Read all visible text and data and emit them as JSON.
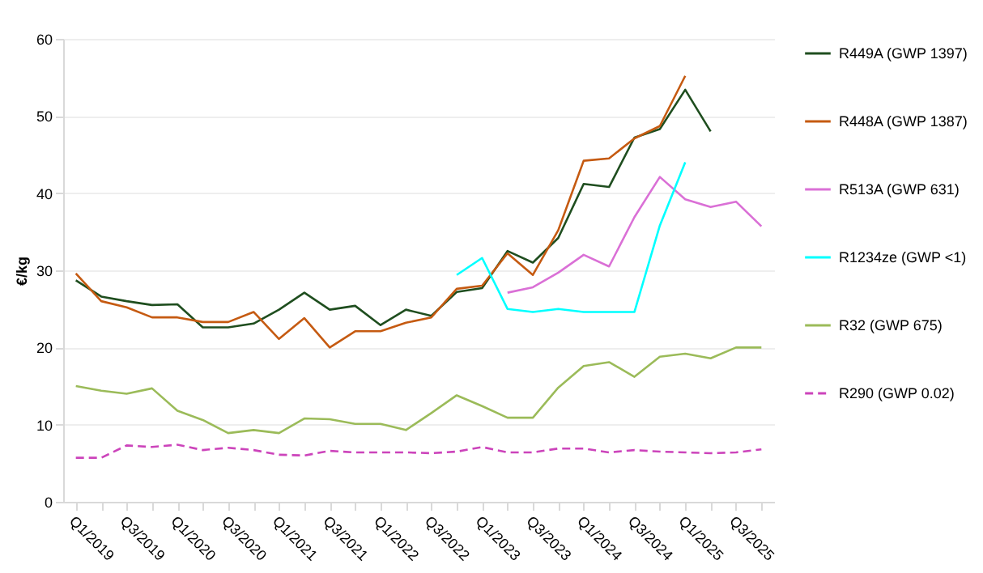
{
  "chart_data": {
    "type": "line",
    "ylabel": "€/kg",
    "categories": [
      "Q1/2019",
      null,
      "Q3/2019",
      null,
      "Q1/2020",
      null,
      "Q3/2020",
      null,
      "Q1/2021",
      null,
      "Q3/2021",
      null,
      "Q1/2022",
      null,
      "Q3/2022",
      null,
      "Q1/2023",
      null,
      "Q3/2023",
      null,
      "Q1/2024",
      null,
      "Q3/2024",
      null,
      "Q1/2025",
      null,
      "Q3/2025",
      null
    ],
    "series": [
      {
        "name": "R449A (GWP 1397)",
        "color": "#1f4e1f",
        "values": [
          28.7,
          26.6,
          26.0,
          25.5,
          25.6,
          22.6,
          22.6,
          23.1,
          24.9,
          27.1,
          24.9,
          25.4,
          22.9,
          24.9,
          24.1,
          27.2,
          27.7,
          32.5,
          31.0,
          34.2,
          41.2,
          40.8,
          47.2,
          48.3,
          53.4,
          48.0,
          null,
          null
        ]
      },
      {
        "name": "R448A (GWP 1387)",
        "color": "#c55a11",
        "values": [
          29.6,
          26.0,
          25.2,
          23.9,
          23.9,
          23.3,
          23.3,
          24.6,
          21.1,
          23.8,
          20.0,
          22.1,
          22.1,
          23.2,
          23.9,
          27.6,
          28.0,
          32.2,
          29.4,
          35.2,
          44.2,
          44.5,
          47.1,
          48.7,
          55.2,
          null,
          null,
          null
        ]
      },
      {
        "name": "R513A (GWP 631)",
        "color": "#da70d6",
        "values": [
          null,
          null,
          null,
          null,
          null,
          null,
          null,
          null,
          null,
          null,
          null,
          null,
          null,
          null,
          null,
          null,
          null,
          27.1,
          27.8,
          29.7,
          32.0,
          30.5,
          36.9,
          42.1,
          39.2,
          38.2,
          38.9,
          35.7
        ]
      },
      {
        "name": "R1234ze (GWP <1)",
        "color": "#00ffff",
        "values": [
          null,
          null,
          null,
          null,
          null,
          null,
          null,
          null,
          null,
          null,
          null,
          null,
          null,
          null,
          null,
          29.4,
          31.6,
          25.0,
          24.6,
          25.0,
          24.6,
          24.6,
          24.6,
          35.8,
          44.0,
          null,
          null,
          null
        ]
      },
      {
        "name": "R32 (GWP 675)",
        "color": "#9bbb59",
        "values": [
          15.0,
          14.4,
          14.0,
          14.7,
          11.8,
          10.6,
          8.9,
          9.3,
          8.9,
          10.8,
          10.7,
          10.1,
          10.1,
          9.3,
          11.5,
          13.8,
          12.4,
          10.9,
          10.9,
          14.8,
          17.6,
          18.1,
          16.2,
          18.8,
          19.2,
          18.6,
          20.0,
          20.0
        ]
      },
      {
        "name": "R290 (GWP 0.02)",
        "color": "#cc44bb",
        "line_style": "dashed",
        "values": [
          5.7,
          5.7,
          7.3,
          7.1,
          7.4,
          6.7,
          7.0,
          6.7,
          6.1,
          6.0,
          6.6,
          6.4,
          6.4,
          6.4,
          6.3,
          6.5,
          7.1,
          6.4,
          6.4,
          6.9,
          6.9,
          6.4,
          6.7,
          6.5,
          6.4,
          6.3,
          6.4,
          6.8
        ]
      }
    ],
    "ylim": [
      0,
      60
    ],
    "yticks": [
      0,
      10,
      20,
      30,
      40,
      50,
      60
    ],
    "grid": "y",
    "legend": "right",
    "marker": "none",
    "line_style": "solid"
  }
}
